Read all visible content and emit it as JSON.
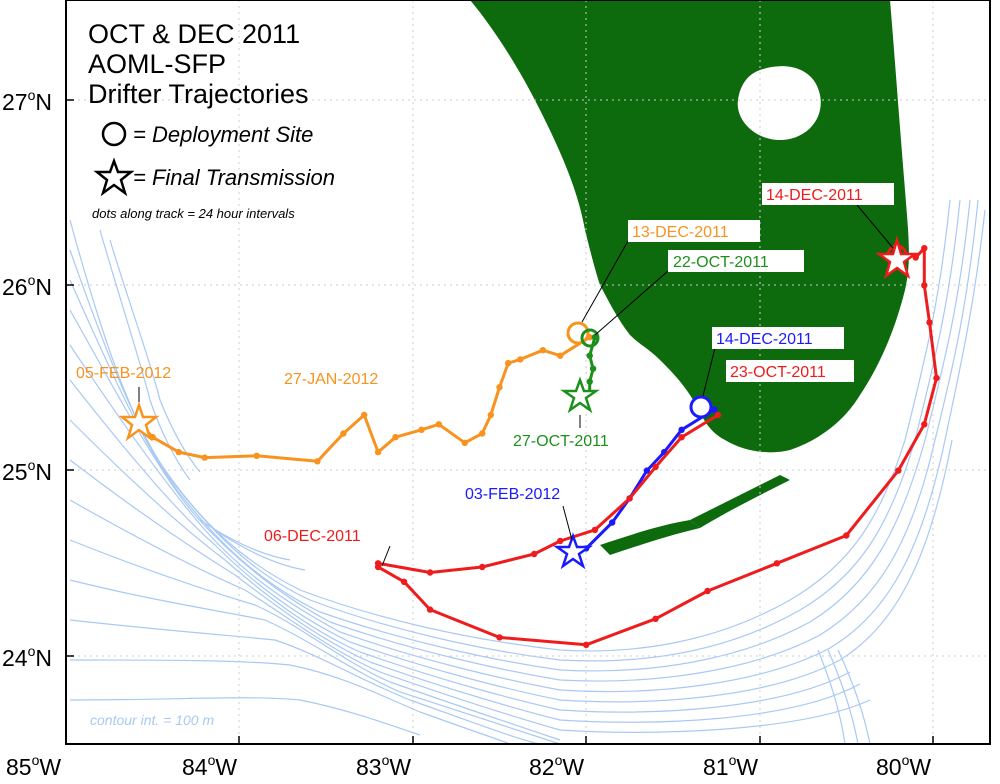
{
  "title": {
    "line1": "OCT & DEC 2011",
    "line2": "AOML-SFP",
    "line3": "Drifter Trajectories"
  },
  "legend": {
    "deployment": "= Deployment Site",
    "final": "= Final Transmission",
    "dots_note": "dots along track = 24 hour intervals"
  },
  "contour_note": "contour int. = 100 m",
  "axes": {
    "x_ticks": [
      {
        "deg": "85",
        "hemi": "W"
      },
      {
        "deg": "84",
        "hemi": "W"
      },
      {
        "deg": "83",
        "hemi": "W"
      },
      {
        "deg": "82",
        "hemi": "W"
      },
      {
        "deg": "81",
        "hemi": "W"
      },
      {
        "deg": "80",
        "hemi": "W"
      }
    ],
    "y_ticks": [
      {
        "deg": "27",
        "hemi": "N"
      },
      {
        "deg": "26",
        "hemi": "N"
      },
      {
        "deg": "25",
        "hemi": "N"
      },
      {
        "deg": "24",
        "hemi": "N"
      }
    ],
    "degree_symbol": "o",
    "lon_range": [
      -85,
      -79.55
    ],
    "lat_range": [
      23.55,
      27.55
    ]
  },
  "colors": {
    "land": "#0d6b0d",
    "contour": "#a9c9f3",
    "orange": "#f7931e",
    "green": "#1d8f1d",
    "blue": "#1a1aff",
    "red": "#ee1c1c"
  },
  "labels": {
    "red_start": "14-DEC-2011",
    "orange_start": "13-DEC-2011",
    "green_start": "22-OCT-2011",
    "blue_start": "14-DEC-2011",
    "red2_start": "23-OCT-2011",
    "orange_end": "05-FEB-2012",
    "orange_mid": "27-JAN-2012",
    "green_end": "27-OCT-2011",
    "blue_end": "03-FEB-2012",
    "red2_end": "06-DEC-2011"
  },
  "drifters": [
    {
      "color": "red",
      "start": "14-DEC-2011",
      "end": "14-DEC-2011",
      "track": [
        [
          -80.1,
          26.15
        ],
        [
          -80.05,
          26.2
        ],
        [
          -80.05,
          26.0
        ],
        [
          -80.02,
          25.8
        ],
        [
          -79.98,
          25.5
        ],
        [
          -80.05,
          25.25
        ],
        [
          -80.2,
          25.0
        ],
        [
          -80.5,
          24.65
        ],
        [
          -80.9,
          24.5
        ],
        [
          -81.3,
          24.35
        ],
        [
          -81.6,
          24.2
        ],
        [
          -82.0,
          24.06
        ],
        [
          -82.5,
          24.1
        ],
        [
          -82.9,
          24.25
        ],
        [
          -83.05,
          24.4
        ],
        [
          -83.2,
          24.48
        ]
      ]
    },
    {
      "color": "orange",
      "start": "13-DEC-2011",
      "end": "05-FEB-2012",
      "track": [
        [
          -81.98,
          25.72
        ],
        [
          -82.15,
          25.62
        ],
        [
          -82.25,
          25.65
        ],
        [
          -82.38,
          25.6
        ],
        [
          -82.45,
          25.58
        ],
        [
          -82.5,
          25.45
        ],
        [
          -82.55,
          25.3
        ],
        [
          -82.6,
          25.2
        ],
        [
          -82.7,
          25.15
        ],
        [
          -82.85,
          25.25
        ],
        [
          -82.95,
          25.22
        ],
        [
          -83.1,
          25.18
        ],
        [
          -83.2,
          25.1
        ],
        [
          -83.28,
          25.3
        ],
        [
          -83.4,
          25.2
        ],
        [
          -83.55,
          25.05
        ],
        [
          -83.9,
          25.08
        ],
        [
          -84.2,
          25.07
        ],
        [
          -84.35,
          25.1
        ],
        [
          -84.5,
          25.18
        ],
        [
          -84.6,
          25.28
        ]
      ]
    },
    {
      "color": "green",
      "start": "22-OCT-2011",
      "end": "27-OCT-2011",
      "track": [
        [
          -81.95,
          25.72
        ],
        [
          -81.98,
          25.62
        ],
        [
          -81.96,
          25.55
        ],
        [
          -81.98,
          25.48
        ],
        [
          -81.98,
          25.42
        ]
      ]
    },
    {
      "color": "blue",
      "start": "14-DEC-2011",
      "end": "03-FEB-2012",
      "track": [
        [
          -81.26,
          25.33
        ],
        [
          -81.45,
          25.22
        ],
        [
          -81.55,
          25.1
        ],
        [
          -81.65,
          25.0
        ],
        [
          -81.75,
          24.85
        ],
        [
          -81.85,
          24.72
        ],
        [
          -82.0,
          24.58
        ]
      ]
    },
    {
      "color": "red",
      "start": "23-OCT-2011",
      "end": "06-DEC-2011",
      "track": [
        [
          -81.24,
          25.3
        ],
        [
          -81.45,
          25.18
        ],
        [
          -81.6,
          25.02
        ],
        [
          -81.75,
          24.85
        ],
        [
          -81.95,
          24.68
        ],
        [
          -82.15,
          24.62
        ],
        [
          -82.3,
          24.55
        ],
        [
          -82.6,
          24.48
        ],
        [
          -82.9,
          24.45
        ],
        [
          -83.2,
          24.5
        ]
      ]
    }
  ]
}
